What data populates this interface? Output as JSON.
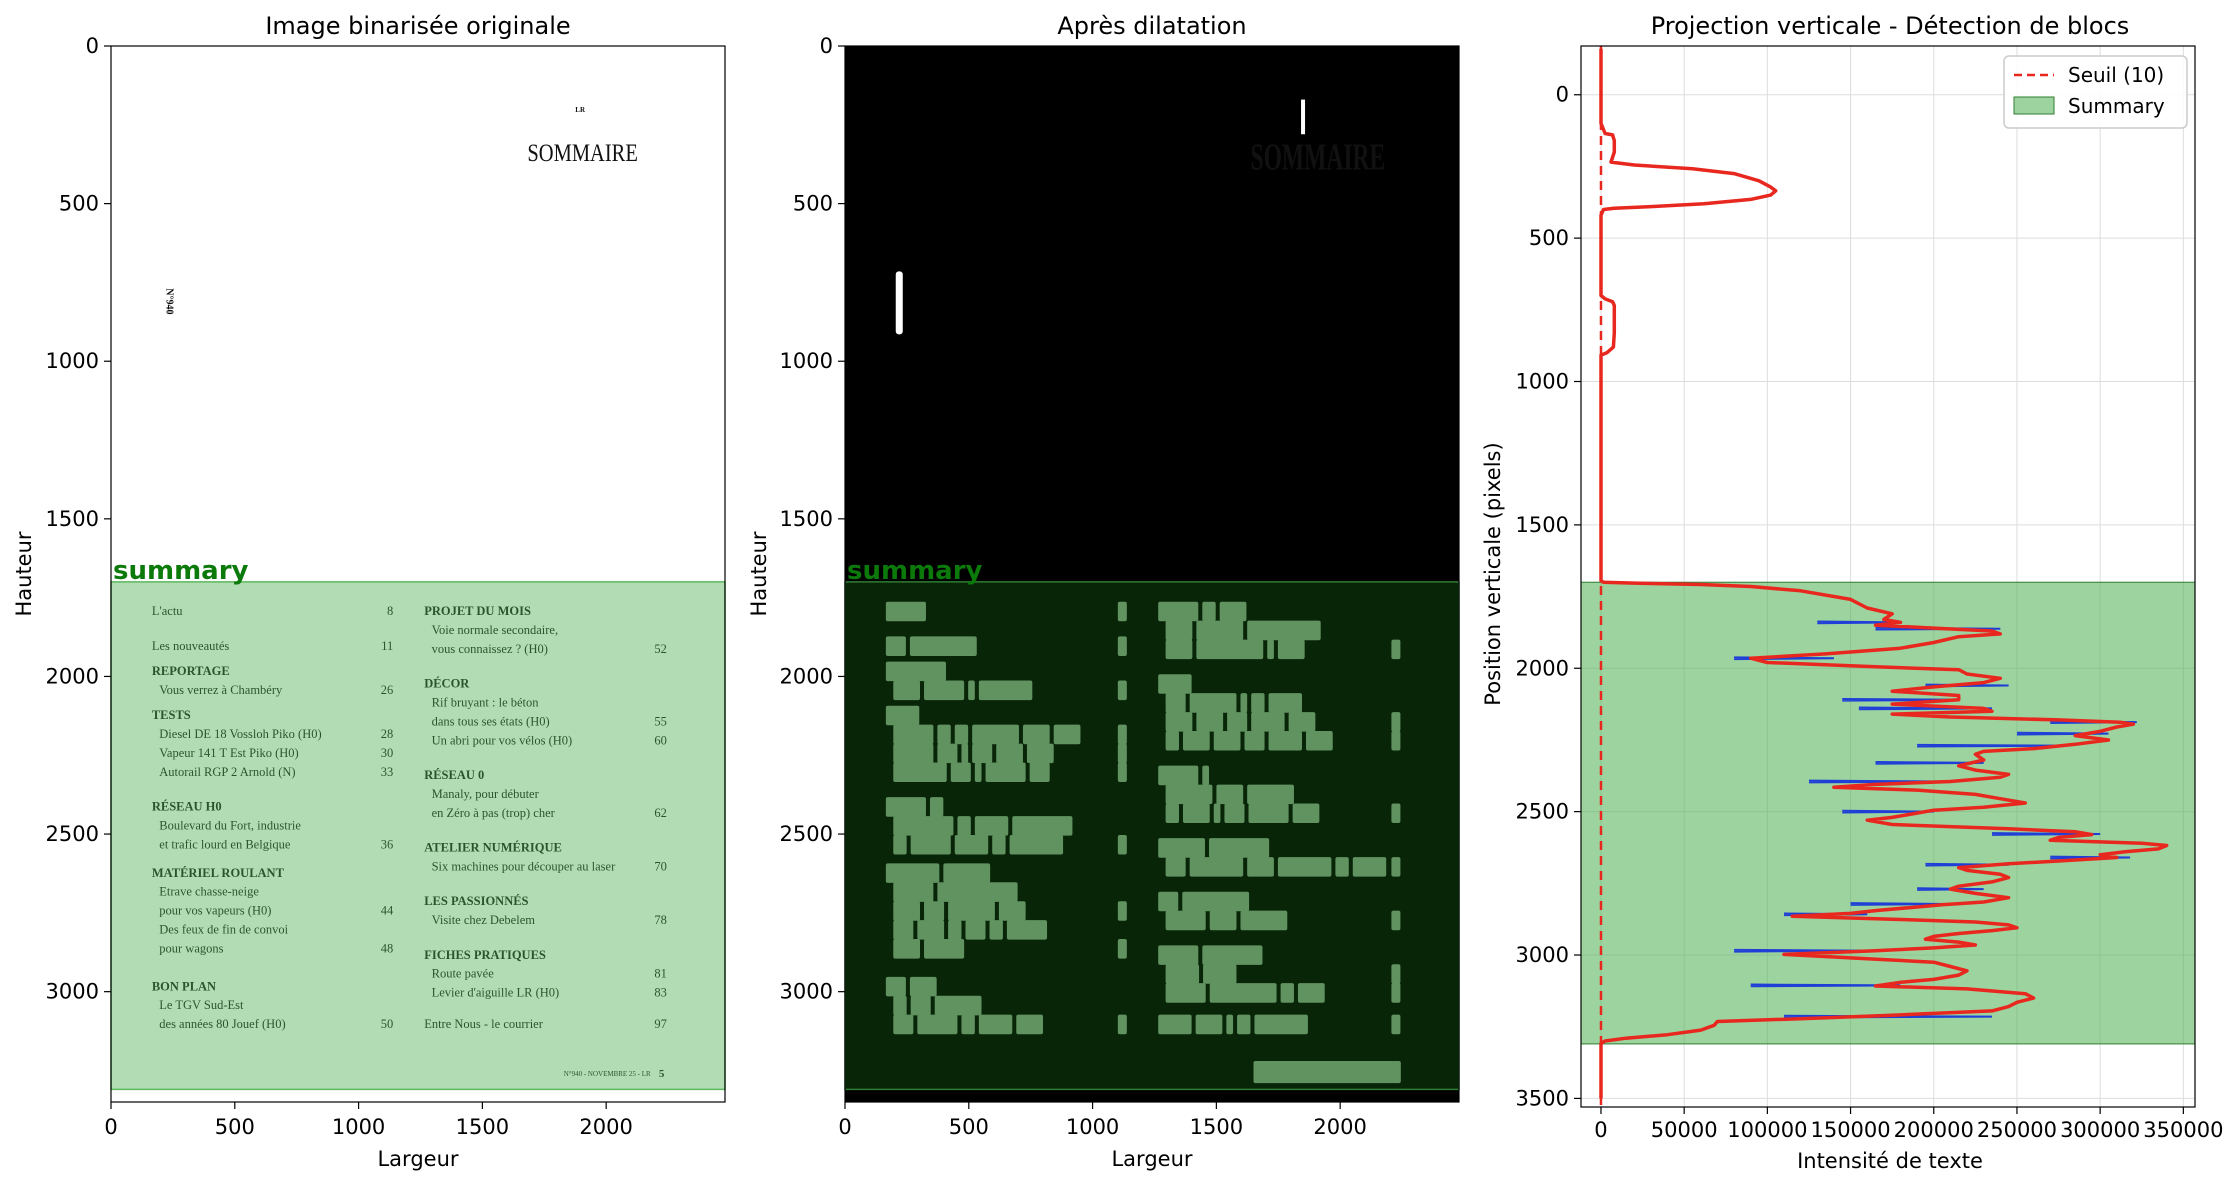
{
  "chart_data": [
    {
      "type": "image",
      "title": "Image binarisée originale",
      "xlabel": "Largeur",
      "ylabel": "Hauteur",
      "xlim": [
        0,
        2480
      ],
      "ylim": [
        3350,
        0
      ],
      "xticks": [
        "0",
        "500",
        "1000",
        "1500",
        "2000"
      ],
      "yticks": [
        "0",
        "500",
        "1000",
        "1500",
        "2000",
        "2500",
        "3000"
      ],
      "region": {
        "label": "summary",
        "y_start": 1700,
        "y_end": 3310
      },
      "page_text": {
        "header_small": "LR",
        "header": "SOMMAIRE",
        "side_label": "N°940",
        "footer": "N°940 - NOVEMBRE 25 - LR",
        "footer_page": "5",
        "left_column": [
          {
            "y": 1793,
            "text": "L'actu",
            "page": "8",
            "bold": false
          },
          {
            "y": 1903,
            "text": "Les nouveautés",
            "page": "11",
            "bold": false
          },
          {
            "y": 1983,
            "text": "REPORTAGE",
            "page": "",
            "bold": true
          },
          {
            "y": 2043,
            "text": "Vous verrez à Chambéry",
            "page": "26",
            "bold": false,
            "indent": true
          },
          {
            "y": 2123,
            "text": "TESTS",
            "page": "",
            "bold": true
          },
          {
            "y": 2183,
            "text": "Diesel DE 18 Vossloh Piko (H0)",
            "page": "28",
            "bold": false,
            "indent": true
          },
          {
            "y": 2243,
            "text": "Vapeur 141 T Est Piko (H0)",
            "page": "30",
            "bold": false,
            "indent": true
          },
          {
            "y": 2303,
            "text": "Autorail RGP 2 Arnold (N)",
            "page": "33",
            "bold": false,
            "indent": true
          },
          {
            "y": 2413,
            "text": "RÉSEAU H0",
            "page": "",
            "bold": true
          },
          {
            "y": 2473,
            "text": "Boulevard du Fort, industrie",
            "page": "",
            "bold": false,
            "indent": true
          },
          {
            "y": 2533,
            "text": "et trafic lourd en Belgique",
            "page": "36",
            "bold": false,
            "indent": true
          },
          {
            "y": 2623,
            "text": "MATÉRIEL ROULANT",
            "page": "",
            "bold": true
          },
          {
            "y": 2683,
            "text": "Etrave chasse-neige",
            "page": "",
            "bold": false,
            "indent": true
          },
          {
            "y": 2743,
            "text": "pour vos vapeurs (H0)",
            "page": "44",
            "bold": false,
            "indent": true
          },
          {
            "y": 2803,
            "text": "Des feux de fin de convoi",
            "page": "",
            "bold": false,
            "indent": true
          },
          {
            "y": 2863,
            "text": "pour wagons",
            "page": "48",
            "bold": false,
            "indent": true
          },
          {
            "y": 2983,
            "text": "BON PLAN",
            "page": "",
            "bold": true
          },
          {
            "y": 3043,
            "text": "Le TGV Sud-Est",
            "page": "",
            "bold": false,
            "indent": true
          },
          {
            "y": 3103,
            "text": "des années 80 Jouef (H0)",
            "page": "50",
            "bold": false,
            "indent": true
          }
        ],
        "right_column": [
          {
            "y": 1793,
            "text": "PROJET DU MOIS",
            "page": "",
            "bold": true
          },
          {
            "y": 1853,
            "text": "Voie normale secondaire,",
            "page": "",
            "bold": false,
            "indent": true
          },
          {
            "y": 1913,
            "text": "vous connaissez ? (H0)",
            "page": "52",
            "bold": false,
            "indent": true
          },
          {
            "y": 2023,
            "text": "DÉCOR",
            "page": "",
            "bold": true
          },
          {
            "y": 2083,
            "text": "Rif bruyant : le béton",
            "page": "",
            "bold": false,
            "indent": true
          },
          {
            "y": 2143,
            "text": "dans tous ses états (H0)",
            "page": "55",
            "bold": false,
            "indent": true
          },
          {
            "y": 2203,
            "text": "Un abri pour vos vélos (H0)",
            "page": "60",
            "bold": false,
            "indent": true
          },
          {
            "y": 2313,
            "text": "RÉSEAU 0",
            "page": "",
            "bold": true
          },
          {
            "y": 2373,
            "text": "Manaly, pour débuter",
            "page": "",
            "bold": false,
            "indent": true
          },
          {
            "y": 2433,
            "text": "en Zéro à pas (trop) cher",
            "page": "62",
            "bold": false,
            "indent": true
          },
          {
            "y": 2543,
            "text": "ATELIER NUMÉRIQUE",
            "page": "",
            "bold": true
          },
          {
            "y": 2603,
            "text": "Six machines pour découper au laser",
            "page": "70",
            "bold": false,
            "indent": true
          },
          {
            "y": 2713,
            "text": "LES PASSIONNÉS",
            "page": "",
            "bold": true
          },
          {
            "y": 2773,
            "text": "Visite chez Debelem",
            "page": "78",
            "bold": false,
            "indent": true
          },
          {
            "y": 2883,
            "text": "FICHES PRATIQUES",
            "page": "",
            "bold": true
          },
          {
            "y": 2943,
            "text": "Route pavée",
            "page": "81",
            "bold": false,
            "indent": true
          },
          {
            "y": 3003,
            "text": "Levier d'aiguille LR (H0)",
            "page": "83",
            "bold": false,
            "indent": true
          },
          {
            "y": 3103,
            "text": "Entre Nous - le courrier",
            "page": "97",
            "bold": false
          }
        ]
      }
    },
    {
      "type": "image",
      "title": "Après dilatation",
      "xlabel": "Largeur",
      "ylabel": "Hauteur",
      "xlim": [
        0,
        2480
      ],
      "ylim": [
        3350,
        0
      ],
      "xticks": [
        "0",
        "500",
        "1000",
        "1500",
        "2000"
      ],
      "yticks": [
        "0",
        "500",
        "1000",
        "1500",
        "2000",
        "2500",
        "3000"
      ],
      "region": {
        "label": "summary",
        "y_start": 1700,
        "y_end": 3310
      },
      "dilated_header": "SOMMAIRE"
    },
    {
      "type": "line",
      "title": "Projection verticale - Détection de blocs",
      "xlabel": "Intensité de texte",
      "ylabel": "Position verticale (pixels)",
      "xlim": [
        -12000,
        357000
      ],
      "ylim": [
        3530,
        -170
      ],
      "xticks": [
        0,
        50000,
        100000,
        150000,
        200000,
        250000,
        300000,
        350000
      ],
      "yticks": [
        0,
        500,
        1000,
        1500,
        2000,
        2500,
        3000,
        3500
      ],
      "grid": true,
      "legend_position": "top-right",
      "threshold": {
        "value": 10,
        "label": "Seuil (10)",
        "color": "#e8281f"
      },
      "region": {
        "label": "Summary",
        "y_start": 1700,
        "y_end": 3310,
        "color": "#4caf50"
      },
      "profile": [
        [
          -160,
          0
        ],
        [
          100,
          0
        ],
        [
          135,
          2500
        ],
        [
          140,
          7000
        ],
        [
          160,
          8000
        ],
        [
          200,
          8000
        ],
        [
          235,
          6000
        ],
        [
          245,
          20000
        ],
        [
          258,
          55000
        ],
        [
          275,
          80000
        ],
        [
          300,
          95000
        ],
        [
          322,
          102000
        ],
        [
          335,
          105000
        ],
        [
          350,
          102000
        ],
        [
          365,
          90000
        ],
        [
          380,
          62000
        ],
        [
          390,
          30000
        ],
        [
          396,
          8000
        ],
        [
          400,
          1500
        ],
        [
          420,
          0
        ],
        [
          700,
          0
        ],
        [
          712,
          2500
        ],
        [
          722,
          7000
        ],
        [
          735,
          8000
        ],
        [
          830,
          8000
        ],
        [
          880,
          7500
        ],
        [
          900,
          3500
        ],
        [
          908,
          0
        ],
        [
          1695,
          0
        ],
        [
          1700,
          1500
        ],
        [
          1703,
          20000
        ],
        [
          1708,
          60000
        ],
        [
          1715,
          90000
        ],
        [
          1730,
          120000
        ],
        [
          1760,
          150000
        ],
        [
          1790,
          160000
        ],
        [
          1810,
          175000
        ],
        [
          1830,
          170000
        ],
        [
          1840,
          180000
        ],
        [
          1850,
          165000
        ],
        [
          1860,
          200000
        ],
        [
          1870,
          235000
        ],
        [
          1880,
          240000
        ],
        [
          1890,
          215000
        ],
        [
          1910,
          200000
        ],
        [
          1930,
          180000
        ],
        [
          1950,
          135000
        ],
        [
          1965,
          90000
        ],
        [
          1980,
          100000
        ],
        [
          1995,
          165000
        ],
        [
          2005,
          215000
        ],
        [
          2020,
          220000
        ],
        [
          2035,
          240000
        ],
        [
          2050,
          230000
        ],
        [
          2065,
          200000
        ],
        [
          2080,
          175000
        ],
        [
          2095,
          215000
        ],
        [
          2110,
          215000
        ],
        [
          2125,
          175000
        ],
        [
          2140,
          230000
        ],
        [
          2150,
          235000
        ],
        [
          2160,
          175000
        ],
        [
          2170,
          210000
        ],
        [
          2180,
          275000
        ],
        [
          2188,
          312000
        ],
        [
          2195,
          320000
        ],
        [
          2205,
          310000
        ],
        [
          2220,
          300000
        ],
        [
          2235,
          285000
        ],
        [
          2250,
          305000
        ],
        [
          2265,
          285000
        ],
        [
          2280,
          260000
        ],
        [
          2290,
          230000
        ],
        [
          2300,
          225000
        ],
        [
          2320,
          230000
        ],
        [
          2340,
          215000
        ],
        [
          2355,
          225000
        ],
        [
          2370,
          245000
        ],
        [
          2380,
          240000
        ],
        [
          2395,
          210000
        ],
        [
          2405,
          165000
        ],
        [
          2415,
          140000
        ],
        [
          2425,
          190000
        ],
        [
          2440,
          225000
        ],
        [
          2455,
          240000
        ],
        [
          2470,
          255000
        ],
        [
          2485,
          230000
        ],
        [
          2495,
          200000
        ],
        [
          2510,
          185000
        ],
        [
          2520,
          175000
        ],
        [
          2530,
          160000
        ],
        [
          2545,
          175000
        ],
        [
          2560,
          245000
        ],
        [
          2570,
          285000
        ],
        [
          2580,
          295000
        ],
        [
          2590,
          275000
        ],
        [
          2600,
          270000
        ],
        [
          2610,
          325000
        ],
        [
          2618,
          340000
        ],
        [
          2630,
          335000
        ],
        [
          2640,
          315000
        ],
        [
          2650,
          300000
        ],
        [
          2660,
          310000
        ],
        [
          2672,
          275000
        ],
        [
          2682,
          245000
        ],
        [
          2695,
          215000
        ],
        [
          2705,
          220000
        ],
        [
          2718,
          240000
        ],
        [
          2730,
          245000
        ],
        [
          2745,
          235000
        ],
        [
          2760,
          215000
        ],
        [
          2770,
          210000
        ],
        [
          2785,
          225000
        ],
        [
          2800,
          245000
        ],
        [
          2815,
          230000
        ],
        [
          2825,
          205000
        ],
        [
          2835,
          185000
        ],
        [
          2845,
          165000
        ],
        [
          2855,
          150000
        ],
        [
          2865,
          115000
        ],
        [
          2875,
          175000
        ],
        [
          2885,
          225000
        ],
        [
          2895,
          245000
        ],
        [
          2905,
          250000
        ],
        [
          2915,
          235000
        ],
        [
          2925,
          215000
        ],
        [
          2935,
          200000
        ],
        [
          2945,
          195000
        ],
        [
          2955,
          215000
        ],
        [
          2965,
          225000
        ],
        [
          2975,
          200000
        ],
        [
          2985,
          165000
        ],
        [
          2998,
          110000
        ],
        [
          3010,
          150000
        ],
        [
          3025,
          200000
        ],
        [
          3040,
          210000
        ],
        [
          3055,
          220000
        ],
        [
          3070,
          215000
        ],
        [
          3085,
          200000
        ],
        [
          3095,
          180000
        ],
        [
          3108,
          165000
        ],
        [
          3118,
          220000
        ],
        [
          3135,
          255000
        ],
        [
          3150,
          260000
        ],
        [
          3165,
          250000
        ],
        [
          3180,
          245000
        ],
        [
          3195,
          235000
        ],
        [
          3210,
          175000
        ],
        [
          3222,
          120000
        ],
        [
          3232,
          70000
        ],
        [
          3245,
          68000
        ],
        [
          3262,
          60000
        ],
        [
          3278,
          40000
        ],
        [
          3290,
          15000
        ],
        [
          3300,
          2500
        ],
        [
          3308,
          0
        ],
        [
          3500,
          0
        ]
      ],
      "raw_spikes": [
        [
          1840,
          130000,
          180000
        ],
        [
          1862,
          165000,
          240000
        ],
        [
          1965,
          80000,
          140000
        ],
        [
          2060,
          195000,
          245000
        ],
        [
          2110,
          145000,
          215000
        ],
        [
          2140,
          155000,
          235000
        ],
        [
          2188,
          270000,
          322000
        ],
        [
          2228,
          250000,
          305000
        ],
        [
          2270,
          190000,
          275000
        ],
        [
          2330,
          165000,
          230000
        ],
        [
          2395,
          125000,
          210000
        ],
        [
          2500,
          145000,
          200000
        ],
        [
          2578,
          235000,
          300000
        ],
        [
          2660,
          270000,
          318000
        ],
        [
          2685,
          195000,
          245000
        ],
        [
          2770,
          190000,
          230000
        ],
        [
          2822,
          150000,
          210000
        ],
        [
          2858,
          110000,
          160000
        ],
        [
          2985,
          80000,
          165000
        ],
        [
          3106,
          90000,
          180000
        ],
        [
          3215,
          110000,
          235000
        ]
      ]
    }
  ],
  "legend": [
    {
      "label": "Seuil (10)",
      "style": "dashed-line",
      "color": "#e8281f"
    },
    {
      "label": "Summary",
      "style": "patch",
      "color": "#4caf50"
    }
  ],
  "colors": {
    "summary_text": "#0b7a0b",
    "summary_fill": "#4caf50",
    "profile_line": "#e8281f",
    "raw_profile": "#1f3fd6",
    "dilated_text": "#b3dcb3"
  }
}
